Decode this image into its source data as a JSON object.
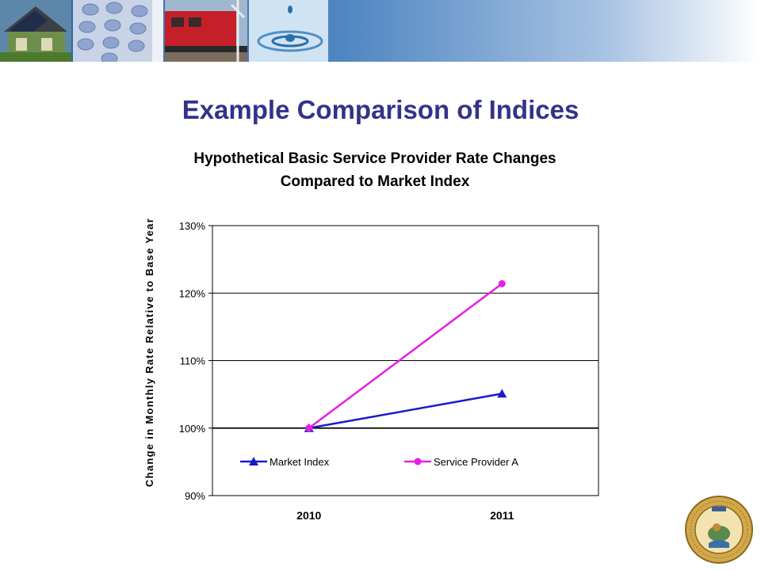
{
  "slide": {
    "title": "Example Comparison of Indices"
  },
  "banner": {
    "images": [
      "house-with-solar-panels",
      "phone-keypad",
      "red-train-locomotive",
      "water-drop"
    ]
  },
  "seal": {
    "name": "state-agency-seal",
    "text": "PUBLIC UTILITIES COMMISSION · STATE OF CALIFORNIA · EUREKA"
  },
  "colors": {
    "title": "#33338a",
    "market_index": "#1a1acc",
    "service_provider": "#e61ee6"
  },
  "chart_data": {
    "type": "line",
    "title": "Hypothetical Basic Service Provider Rate Changes",
    "subtitle": "Compared to Market Index",
    "xlabel": "",
    "ylabel": "Change in Monthly Rate Relative to Base Year",
    "categories": [
      "2010",
      "2011"
    ],
    "ylim": [
      90,
      130
    ],
    "yticks": [
      "90%",
      "100%",
      "110%",
      "120%",
      "130%"
    ],
    "grid": true,
    "legend_position": "inside-bottom",
    "series": [
      {
        "name": "Market Index",
        "values": [
          100,
          105.1
        ],
        "marker": "triangle",
        "color": "#1a1acc"
      },
      {
        "name": "Service Provider A",
        "values": [
          100,
          121.4
        ],
        "marker": "circle",
        "color": "#e61ee6"
      }
    ]
  }
}
